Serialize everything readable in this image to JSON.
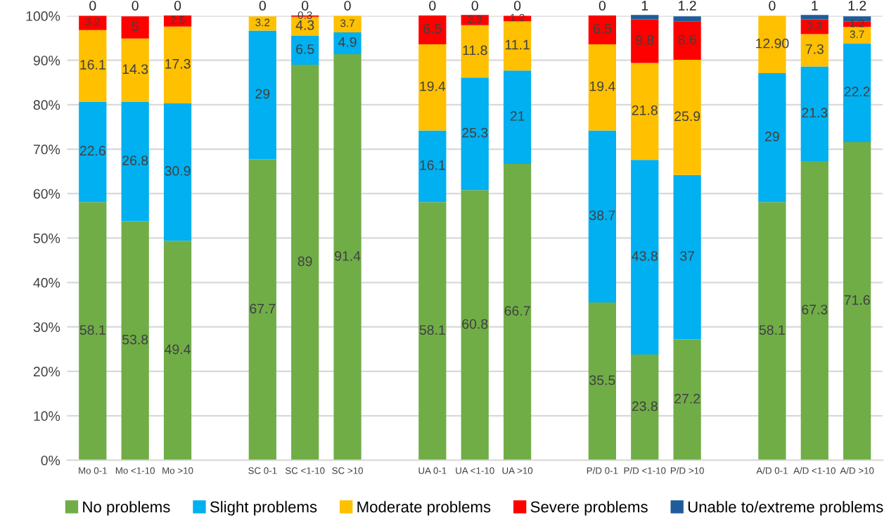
{
  "chart_data": {
    "type": "bar",
    "stacked": true,
    "categories": [
      "Mo 0-1",
      "Mo <1-10",
      "Mo >10",
      null,
      "SC 0-1",
      "SC <1-10",
      "SC >10",
      null,
      "UA 0-1",
      "UA <1-10",
      "UA >10",
      null,
      "P/D 0-1",
      "P/D <1-10",
      "P/D >10",
      null,
      "A/D 0-1",
      "A/D <1-10",
      "A/D >10"
    ],
    "series": [
      {
        "name": "No problems",
        "color": "#70ad47",
        "values": [
          58.1,
          53.8,
          49.4,
          null,
          67.7,
          89,
          91.4,
          null,
          58.1,
          60.8,
          66.7,
          null,
          35.5,
          23.8,
          27.2,
          null,
          58.1,
          67.3,
          71.6
        ],
        "value_labels": [
          "58.1",
          "53.8",
          "49.4",
          null,
          "67.7",
          "89",
          "91.4",
          null,
          "58.1",
          "60.8",
          "66.7",
          null,
          "35.5",
          "23.8",
          "27.2",
          null,
          "58.1",
          "67.3",
          "71.6"
        ]
      },
      {
        "name": "Slight problems",
        "color": "#00b0f0",
        "values": [
          22.6,
          26.8,
          30.9,
          null,
          29,
          6.5,
          4.9,
          null,
          16.1,
          25.3,
          21,
          null,
          38.7,
          43.8,
          37,
          null,
          29,
          21.3,
          22.2
        ],
        "value_labels": [
          "22.6",
          "26.8",
          "30.9",
          null,
          "29",
          "6.5",
          "4.9",
          null,
          "16.1",
          "25.3",
          "21",
          null,
          "38.7",
          "43.8",
          "37",
          null,
          "29",
          "21.3",
          "22.2"
        ]
      },
      {
        "name": "Moderate problems",
        "color": "#ffc000",
        "values": [
          16.1,
          14.3,
          17.3,
          null,
          3.2,
          4.3,
          3.7,
          null,
          19.4,
          11.8,
          11.1,
          null,
          19.4,
          21.8,
          25.9,
          null,
          12.9,
          7.3,
          3.7
        ],
        "value_labels": [
          "16.1",
          "14.3",
          "17.3",
          null,
          "3.2",
          "4.3",
          "3.7",
          null,
          "19.4",
          "11.8",
          "11.1",
          null,
          "19.4",
          "21.8",
          "25.9",
          null,
          "12.90",
          "7.3",
          "3.7"
        ]
      },
      {
        "name": "Severe problems",
        "color": "#ff0000",
        "values": [
          3.2,
          5,
          2.5,
          null,
          null,
          0.3,
          null,
          null,
          6.5,
          2.3,
          1.2,
          null,
          6.5,
          9.8,
          8.6,
          null,
          null,
          3.3,
          1.2
        ],
        "value_labels": [
          "3.2",
          "5",
          "2.5",
          null,
          null,
          "0.3",
          null,
          null,
          "6.5",
          "2.3",
          "1.2",
          null,
          "6.5",
          "9.8",
          "8.6",
          null,
          null,
          "3.3",
          "1.2"
        ]
      },
      {
        "name": "Unable to/extreme problems",
        "color": "#1f5c99",
        "values": [
          0,
          0,
          0,
          null,
          0,
          0,
          0,
          null,
          0,
          0,
          0,
          null,
          0,
          1,
          1.2,
          null,
          0,
          1,
          1.2
        ],
        "value_labels": [
          "0",
          "0",
          "0",
          null,
          "0",
          "0",
          "0",
          null,
          "0",
          "0",
          "0",
          null,
          "0",
          "1",
          "1.2",
          null,
          "0",
          "1",
          "1.2"
        ]
      }
    ],
    "ylim": [
      0,
      100
    ],
    "yticks": [
      {
        "value": 0,
        "label": "0%"
      },
      {
        "value": 10,
        "label": "10%"
      },
      {
        "value": 20,
        "label": "20%"
      },
      {
        "value": 30,
        "label": "30%"
      },
      {
        "value": 40,
        "label": "40%"
      },
      {
        "value": 50,
        "label": "50%"
      },
      {
        "value": 60,
        "label": "60%"
      },
      {
        "value": 70,
        "label": "70%"
      },
      {
        "value": 80,
        "label": "80%"
      },
      {
        "value": 90,
        "label": "90%"
      },
      {
        "value": 100,
        "label": "100%"
      }
    ],
    "grid": "y",
    "legend": "bottom"
  }
}
